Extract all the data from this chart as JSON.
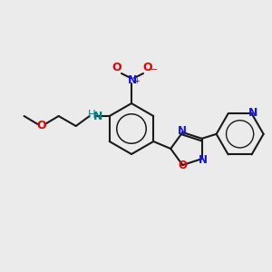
{
  "background_color": "#ebebeb",
  "bond_color": "#1a1a1a",
  "colors": {
    "O": "#e60000",
    "N": "#1414e6",
    "N_amine": "#008080",
    "C": "#1a1a1a"
  },
  "figsize": [
    3.0,
    3.0
  ],
  "dpi": 100
}
